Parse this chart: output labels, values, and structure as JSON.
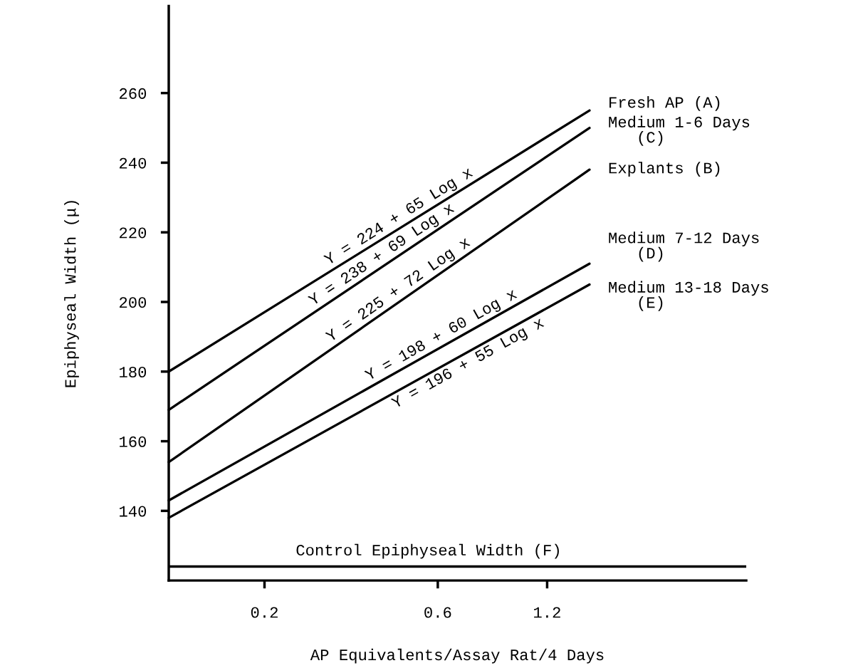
{
  "chart_data": {
    "type": "line",
    "xlabel": "AP Equivalents/Assay Rat/4 Days",
    "ylabel": "Epiphyseal Width (μ)",
    "log": "x",
    "xlim": [
      0.109,
      4.24
    ],
    "xticks": [
      0.2,
      0.6,
      1.2
    ],
    "ylim": [
      120,
      285
    ],
    "yticks": [
      140,
      160,
      180,
      200,
      220,
      240,
      260
    ],
    "grid": false,
    "marker": "none",
    "line_style": "solid",
    "x": [
      0.109,
      1.57
    ],
    "series": [
      {
        "name": "Fresh AP (A)",
        "color": "#000000",
        "values": [
          180,
          255
        ]
      },
      {
        "name": "Medium 1-6 Days\n(C)",
        "color": "#000000",
        "values": [
          169,
          250
        ]
      },
      {
        "name": "Explants (B)",
        "color": "#000000",
        "values": [
          154,
          238
        ]
      },
      {
        "name": "Medium 7-12 Days\n(D)",
        "color": "#000000",
        "values": [
          143,
          211
        ]
      },
      {
        "name": "Medium 13-18 Days\n(E)",
        "color": "#000000",
        "values": [
          138,
          205
        ]
      }
    ],
    "annotations": [
      "Y = 224 + 65 Log x",
      "Y = 238 + 69 Log x",
      "Y = 225 + 72 Log x",
      "Y = 198 + 60 Log x",
      "Y = 196 + 55 Log x"
    ],
    "ref_lines": [
      {
        "axis": "y",
        "value": 124,
        "label": "Control Epiphyseal Width (F)",
        "color": "#000000",
        "line_style": "solid"
      }
    ]
  }
}
